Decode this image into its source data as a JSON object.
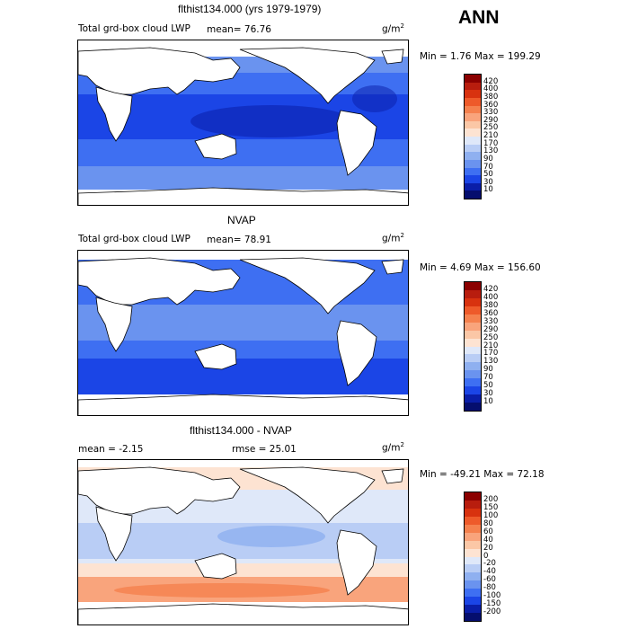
{
  "season": "ANN",
  "units_base": "g/m",
  "units_exp": "2",
  "chart_data": [
    {
      "type": "heatmap",
      "title": "flthist134.000 (yrs 1979-1979)",
      "subtitle": "Total grd-box cloud LWP",
      "mean_text": "mean=  76.76",
      "minmax_text": "Min =   1.76 Max = 199.29",
      "min": 1.76,
      "max": 199.29,
      "mean": 76.76,
      "colorbar_levels": [
        "420",
        "400",
        "380",
        "360",
        "330",
        "290",
        "250",
        "210",
        "170",
        "130",
        "90",
        "70",
        "50",
        "30",
        "10"
      ],
      "colorbar_colors": [
        "#8b0000",
        "#b81d0e",
        "#d8320f",
        "#ee5a2a",
        "#f5814e",
        "#f9a47c",
        "#fbc7a6",
        "#fde3d2",
        "#dfe8f9",
        "#b9cdf5",
        "#8fb0f0",
        "#6a93ef",
        "#3e6ff2",
        "#1b45e6",
        "#0a1ea8",
        "#050e6e"
      ]
    },
    {
      "type": "heatmap",
      "title": "NVAP",
      "subtitle": "Total grd-box cloud LWP",
      "mean_text": "mean=  78.91",
      "minmax_text": "Min =   4.69 Max = 156.60",
      "min": 4.69,
      "max": 156.6,
      "mean": 78.91,
      "colorbar_levels": [
        "420",
        "400",
        "380",
        "360",
        "330",
        "290",
        "250",
        "210",
        "170",
        "130",
        "90",
        "70",
        "50",
        "30",
        "10"
      ],
      "colorbar_colors": [
        "#8b0000",
        "#b81d0e",
        "#d8320f",
        "#ee5a2a",
        "#f5814e",
        "#f9a47c",
        "#fbc7a6",
        "#fde3d2",
        "#dfe8f9",
        "#b9cdf5",
        "#8fb0f0",
        "#6a93ef",
        "#3e6ff2",
        "#1b45e6",
        "#0a1ea8",
        "#050e6e"
      ]
    },
    {
      "type": "heatmap",
      "title": "flthist134.000 - NVAP",
      "mean_text": "mean =   -2.15",
      "rmse_text": "rmse =  25.01",
      "minmax_text": "Min = -49.21 Max =  72.18",
      "min": -49.21,
      "max": 72.18,
      "mean": -2.15,
      "rmse": 25.01,
      "colorbar_levels": [
        "200",
        "150",
        "100",
        "80",
        "60",
        "40",
        "20",
        "0",
        "-20",
        "-40",
        "-60",
        "-80",
        "-100",
        "-150",
        "-200"
      ],
      "colorbar_colors": [
        "#8b0000",
        "#b81d0e",
        "#d8320f",
        "#ee5a2a",
        "#f5814e",
        "#f9a47c",
        "#fbc7a6",
        "#fde3d2",
        "#dfe8f9",
        "#b9cdf5",
        "#8fb0f0",
        "#6a93ef",
        "#3e6ff2",
        "#1b45e6",
        "#0a1ea8",
        "#050e6e"
      ]
    }
  ]
}
